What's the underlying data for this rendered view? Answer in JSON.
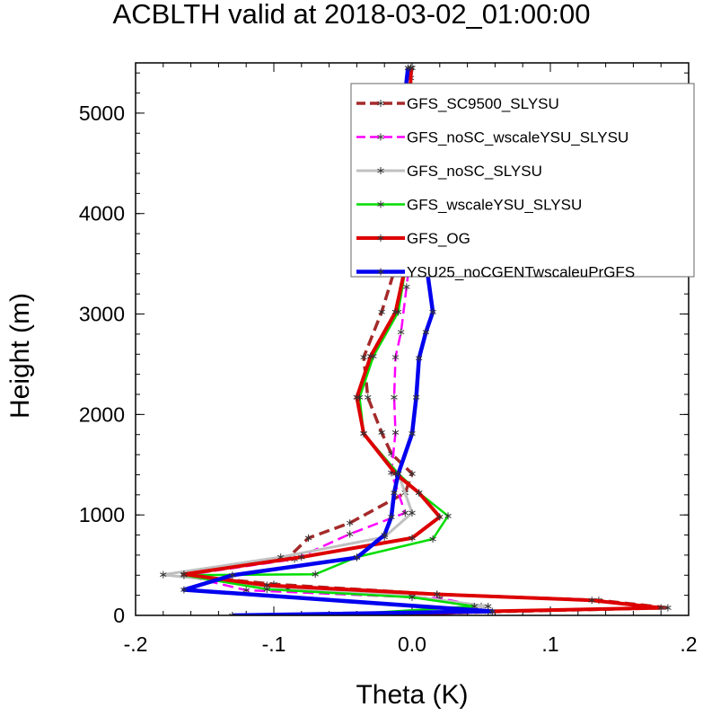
{
  "chart_data": {
    "type": "line",
    "title": "ACBLTH valid at 2018-03-02_01:00:00",
    "xlabel": "Theta (K)",
    "ylabel": "Height (m)",
    "xlim": [
      -0.2,
      0.2
    ],
    "ylim": [
      0,
      5500
    ],
    "x_ticks": [
      -0.2,
      -0.1,
      0.0,
      0.1,
      0.2
    ],
    "x_tick_labels": [
      "-.2",
      "-.1",
      "0.0",
      ".1",
      ".2"
    ],
    "y_ticks": [
      0,
      1000,
      2000,
      3000,
      4000,
      5000
    ],
    "y_tick_labels": [
      "0",
      "1000",
      "2000",
      "3000",
      "4000",
      "5000"
    ],
    "legend_position": "top-right",
    "marker": "asterisk",
    "series": [
      {
        "name": "GFS_SC9500_SLYSU",
        "color": "#a52a2a",
        "dash": "dashed",
        "x": [
          -0.025,
          0.055,
          0.185,
          0.135,
          0.018,
          -0.1,
          -0.165,
          -0.09,
          -0.075,
          -0.045,
          -0.005,
          0.0,
          -0.015,
          -0.022,
          -0.032,
          -0.035,
          -0.022,
          -0.012,
          -0.004,
          -0.002,
          -0.002,
          -0.001,
          0.0
        ],
        "y": [
          0,
          35,
          75,
          150,
          210,
          310,
          400,
          570,
          770,
          920,
          1220,
          1410,
          1610,
          1820,
          2170,
          2570,
          3020,
          3470,
          4070,
          4670,
          5200,
          5350,
          5450
        ]
      },
      {
        "name": "GFS_noSC_wscaleYSU_SLYSU",
        "color": "#ff00ff",
        "dash": "dashed",
        "x": [
          -0.05,
          0.05,
          0.02,
          -0.12,
          -0.165,
          -0.085,
          -0.045,
          -0.005,
          -0.015,
          -0.012,
          -0.013,
          -0.012,
          -0.008,
          -0.004,
          0.0,
          0.0,
          -0.001,
          -0.001
        ],
        "y": [
          0,
          90,
          170,
          250,
          400,
          560,
          810,
          1020,
          1420,
          1820,
          2170,
          2570,
          2820,
          3270,
          3720,
          4620,
          5100,
          5450
        ]
      },
      {
        "name": "GFS_noSC_SLYSU",
        "color": "#c0c0c0",
        "dash": "solid",
        "x": [
          -0.05,
          0.055,
          0.0,
          -0.09,
          -0.18,
          -0.095,
          -0.02,
          0.0,
          -0.01,
          -0.035,
          -0.04,
          -0.03,
          -0.012,
          -0.005,
          -0.003,
          -0.002,
          -0.001
        ],
        "y": [
          0,
          90,
          190,
          270,
          405,
          580,
          780,
          1020,
          1410,
          1810,
          2170,
          2580,
          3020,
          3520,
          4070,
          4670,
          5450
        ]
      },
      {
        "name": "GFS_wscaleYSU_SLYSU",
        "color": "#00dd00",
        "dash": "solid",
        "x": [
          -0.06,
          0.045,
          0.0,
          -0.105,
          -0.165,
          -0.07,
          -0.04,
          0.015,
          0.026,
          0.005,
          -0.01,
          -0.035,
          -0.038,
          -0.028,
          -0.01,
          -0.004,
          -0.003,
          -0.002,
          -0.001
        ],
        "y": [
          0,
          90,
          180,
          260,
          400,
          410,
          580,
          760,
          990,
          1220,
          1410,
          1810,
          2170,
          2580,
          3020,
          3520,
          4070,
          4670,
          5450
        ]
      },
      {
        "name": "GFS_OG",
        "color": "#dd0000",
        "dash": "solid",
        "x": [
          -0.025,
          0.055,
          0.18,
          0.13,
          0.018,
          -0.105,
          -0.165,
          -0.08,
          0.0,
          0.02,
          0.005,
          -0.012,
          -0.035,
          -0.04,
          -0.03,
          -0.012,
          -0.004,
          -0.002,
          -0.001
        ],
        "y": [
          0,
          40,
          75,
          150,
          210,
          300,
          410,
          580,
          770,
          980,
          1220,
          1410,
          1810,
          2170,
          2580,
          3020,
          3520,
          4070,
          5450
        ]
      },
      {
        "name": "YSU25_noCGENTwscaleuPrGFS",
        "color": "#0000ee",
        "dash": "solid",
        "x": [
          -0.13,
          0.058,
          -0.165,
          -0.13,
          -0.04,
          -0.02,
          -0.015,
          -0.013,
          -0.01,
          0.0,
          0.003,
          0.005,
          0.01,
          0.015,
          0.01,
          0.0,
          -0.006,
          -0.008,
          -0.005,
          -0.003
        ],
        "y": [
          0,
          40,
          255,
          400,
          575,
          800,
          980,
          1220,
          1410,
          1810,
          2170,
          2560,
          2820,
          3020,
          3520,
          4070,
          4220,
          4650,
          5200,
          5450
        ]
      }
    ]
  }
}
